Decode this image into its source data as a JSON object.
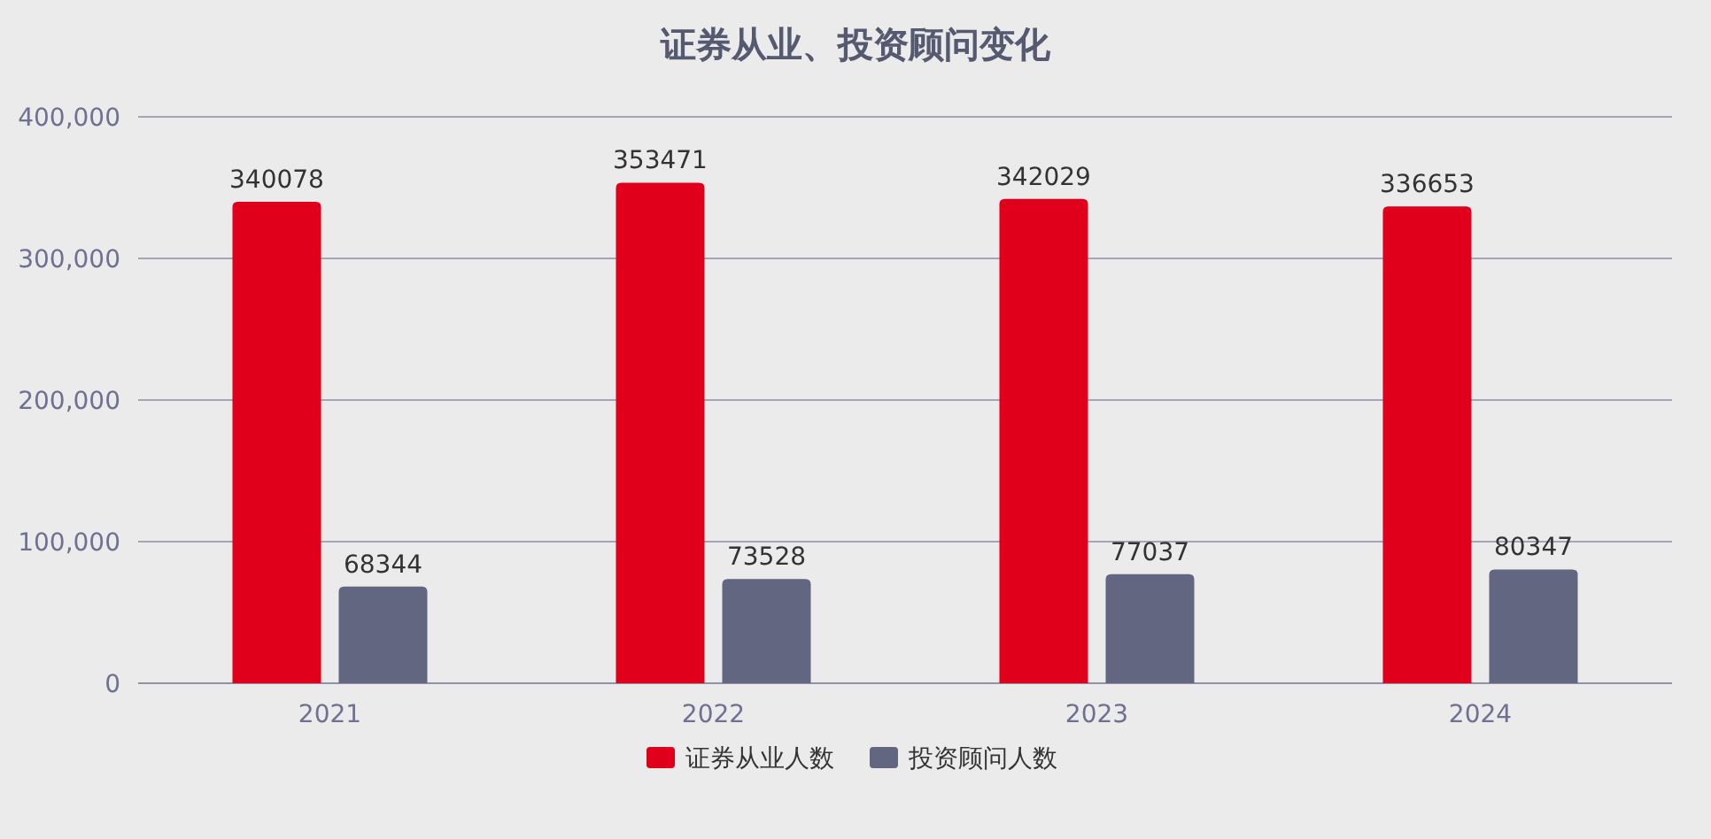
{
  "chart_data": {
    "type": "bar",
    "title": "证券从业、投资顾问变化",
    "categories": [
      "2021",
      "2022",
      "2023",
      "2024"
    ],
    "series": [
      {
        "name": "证券从业人数",
        "color": "#e0001b",
        "values": [
          340078,
          353471,
          342029,
          336653
        ]
      },
      {
        "name": "投资顾问人数",
        "color": "#626680",
        "values": [
          68344,
          73528,
          77037,
          80347
        ]
      }
    ],
    "ylim": [
      0,
      400000
    ],
    "yticks": [
      {
        "value": 0,
        "label": "0"
      },
      {
        "value": 100000,
        "label": "100,000"
      },
      {
        "value": 200000,
        "label": "200,000"
      },
      {
        "value": 300000,
        "label": "300,000"
      },
      {
        "value": 400000,
        "label": "400,000"
      }
    ],
    "grid": "y",
    "legend": "bottom",
    "data_labels": true
  }
}
